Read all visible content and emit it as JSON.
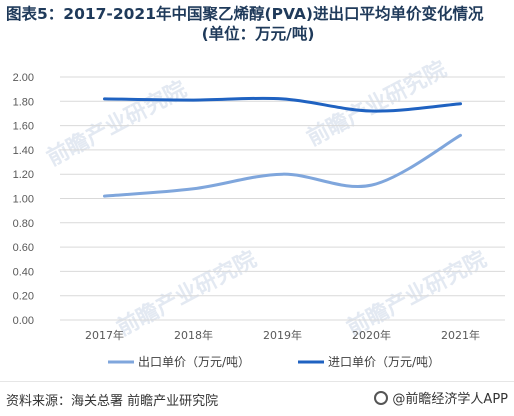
{
  "title": {
    "line1": "图表5：2017-2021年中国聚乙烯醇(PVA)进出口平均单价变化情况",
    "line2": "(单位：万元/吨)"
  },
  "chart_data": {
    "type": "line",
    "x": [
      "2017年",
      "2018年",
      "2019年",
      "2020年",
      "2021年"
    ],
    "ylim": [
      0,
      2.0
    ],
    "yticks": [
      "0.00",
      "0.20",
      "0.40",
      "0.60",
      "0.80",
      "1.00",
      "1.20",
      "1.40",
      "1.60",
      "1.80",
      "2.00"
    ],
    "grid": true,
    "legend_position": "bottom",
    "series": [
      {
        "name": "出口单价（万元/吨）",
        "values": [
          1.02,
          1.08,
          1.2,
          1.11,
          1.52
        ],
        "color": "#7fa6dc"
      },
      {
        "name": "进口单价（万元/吨）",
        "values": [
          1.82,
          1.81,
          1.82,
          1.72,
          1.78
        ],
        "color": "#1f62c1"
      }
    ]
  },
  "watermark": "前瞻产业研究院",
  "footer": {
    "source": "资料来源：海关总署 前瞻产业研究院",
    "brand": "@前瞻经济学人APP"
  }
}
